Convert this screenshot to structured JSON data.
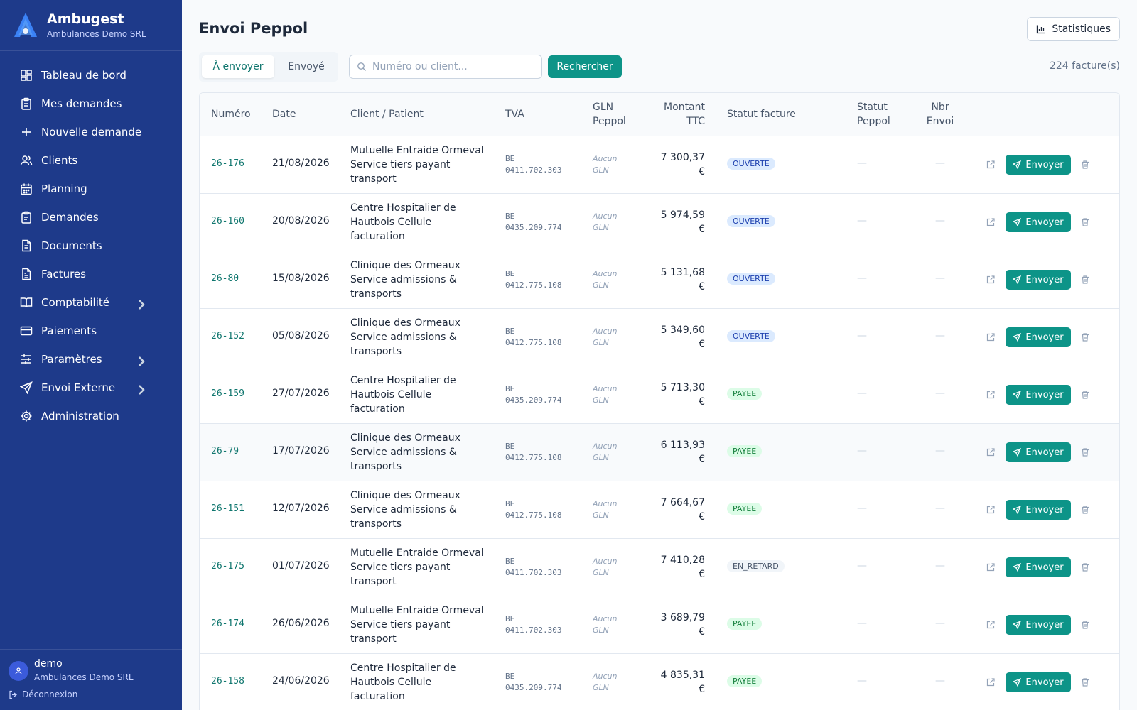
{
  "app": {
    "name": "Ambugest",
    "company": "Ambulances Demo SRL"
  },
  "nav": [
    {
      "label": "Tableau de bord",
      "icon": "dashboard-icon",
      "chevron": false
    },
    {
      "label": "Mes demandes",
      "icon": "clipboard-icon",
      "chevron": false
    },
    {
      "label": "Nouvelle demande",
      "icon": "plus-icon",
      "chevron": false
    },
    {
      "label": "Clients",
      "icon": "users-icon",
      "chevron": false
    },
    {
      "label": "Planning",
      "icon": "calendar-icon",
      "chevron": false
    },
    {
      "label": "Demandes",
      "icon": "clipboard-list-icon",
      "chevron": false
    },
    {
      "label": "Documents",
      "icon": "file-icon",
      "chevron": false
    },
    {
      "label": "Factures",
      "icon": "invoice-icon",
      "chevron": false
    },
    {
      "label": "Comptabilité",
      "icon": "book-icon",
      "chevron": true
    },
    {
      "label": "Paiements",
      "icon": "credit-card-icon",
      "chevron": false
    },
    {
      "label": "Paramètres",
      "icon": "sliders-icon",
      "chevron": true
    },
    {
      "label": "Envoi Externe",
      "icon": "send-icon",
      "chevron": true
    },
    {
      "label": "Administration",
      "icon": "gear-icon",
      "chevron": false
    }
  ],
  "user": {
    "name": "demo",
    "company": "Ambulances Demo SRL",
    "logout": "Déconnexion"
  },
  "page": {
    "title": "Envoi Peppol",
    "stats_button": "Statistiques",
    "tabs": [
      "À envoyer",
      "Envoyé"
    ],
    "search_placeholder": "Numéro ou client...",
    "search_value": "",
    "search_button": "Rechercher",
    "count": "224 facture(s)"
  },
  "table": {
    "headers": {
      "numero": "Numéro",
      "date": "Date",
      "client": "Client / Patient",
      "tva": "TVA",
      "gln": [
        "GLN",
        "Peppol"
      ],
      "montant": [
        "Montant",
        "TTC"
      ],
      "statut_facture": "Statut facture",
      "statut_peppol": [
        "Statut",
        "Peppol"
      ],
      "nbr_envoi": [
        "Nbr",
        "Envoi"
      ]
    },
    "send_label": "Envoyer",
    "empty_dash": "—",
    "rows": [
      {
        "num": "26-176",
        "date": "21/08/2026",
        "client": [
          "Mutuelle Entraide Ormeval",
          "Service tiers payant",
          "transport"
        ],
        "tva": [
          "BE",
          "0411.702.303"
        ],
        "gln": [
          "Aucun",
          "GLN"
        ],
        "amount": [
          "7 300,37",
          "€"
        ],
        "status": "OUVERTE",
        "status_type": "open"
      },
      {
        "num": "26-160",
        "date": "20/08/2026",
        "client": [
          "Centre Hospitalier de",
          "Hautbois Cellule",
          "facturation"
        ],
        "tva": [
          "BE",
          "0435.209.774"
        ],
        "gln": [
          "Aucun",
          "GLN"
        ],
        "amount": [
          "5 974,59",
          "€"
        ],
        "status": "OUVERTE",
        "status_type": "open"
      },
      {
        "num": "26-80",
        "date": "15/08/2026",
        "client": [
          "Clinique des Ormeaux",
          "Service admissions &",
          "transports"
        ],
        "tva": [
          "BE",
          "0412.775.108"
        ],
        "gln": [
          "Aucun",
          "GLN"
        ],
        "amount": [
          "5 131,68",
          "€"
        ],
        "status": "OUVERTE",
        "status_type": "open"
      },
      {
        "num": "26-152",
        "date": "05/08/2026",
        "client": [
          "Clinique des Ormeaux",
          "Service admissions &",
          "transports"
        ],
        "tva": [
          "BE",
          "0412.775.108"
        ],
        "gln": [
          "Aucun",
          "GLN"
        ],
        "amount": [
          "5 349,60",
          "€"
        ],
        "status": "OUVERTE",
        "status_type": "open"
      },
      {
        "num": "26-159",
        "date": "27/07/2026",
        "client": [
          "Centre Hospitalier de",
          "Hautbois Cellule",
          "facturation"
        ],
        "tva": [
          "BE",
          "0435.209.774"
        ],
        "gln": [
          "Aucun",
          "GLN"
        ],
        "amount": [
          "5 713,30",
          "€"
        ],
        "status": "PAYEE",
        "status_type": "paid"
      },
      {
        "num": "26-79",
        "date": "17/07/2026",
        "client": [
          "Clinique des Ormeaux",
          "Service admissions &",
          "transports"
        ],
        "tva": [
          "BE",
          "0412.775.108"
        ],
        "gln": [
          "Aucun",
          "GLN"
        ],
        "amount": [
          "6 113,93",
          "€"
        ],
        "status": "PAYEE",
        "status_type": "paid"
      },
      {
        "num": "26-151",
        "date": "12/07/2026",
        "client": [
          "Clinique des Ormeaux",
          "Service admissions &",
          "transports"
        ],
        "tva": [
          "BE",
          "0412.775.108"
        ],
        "gln": [
          "Aucun",
          "GLN"
        ],
        "amount": [
          "7 664,67",
          "€"
        ],
        "status": "PAYEE",
        "status_type": "paid"
      },
      {
        "num": "26-175",
        "date": "01/07/2026",
        "client": [
          "Mutuelle Entraide Ormeval",
          "Service tiers payant",
          "transport"
        ],
        "tva": [
          "BE",
          "0411.702.303"
        ],
        "gln": [
          "Aucun",
          "GLN"
        ],
        "amount": [
          "7 410,28",
          "€"
        ],
        "status": "EN_RETARD",
        "status_type": "late"
      },
      {
        "num": "26-174",
        "date": "26/06/2026",
        "client": [
          "Mutuelle Entraide Ormeval",
          "Service tiers payant",
          "transport"
        ],
        "tva": [
          "BE",
          "0411.702.303"
        ],
        "gln": [
          "Aucun",
          "GLN"
        ],
        "amount": [
          "3 689,79",
          "€"
        ],
        "status": "PAYEE",
        "status_type": "paid"
      },
      {
        "num": "26-158",
        "date": "24/06/2026",
        "client": [
          "Centre Hospitalier de",
          "Hautbois Cellule",
          "facturation"
        ],
        "tva": [
          "BE",
          "0435.209.774"
        ],
        "gln": [
          "Aucun",
          "GLN"
        ],
        "amount": [
          "4 835,31",
          "€"
        ],
        "status": "PAYEE",
        "status_type": "paid"
      }
    ]
  },
  "colors": {
    "sidebar": "#1e3a8a",
    "accent": "#0d9488",
    "link": "#0f766e"
  }
}
